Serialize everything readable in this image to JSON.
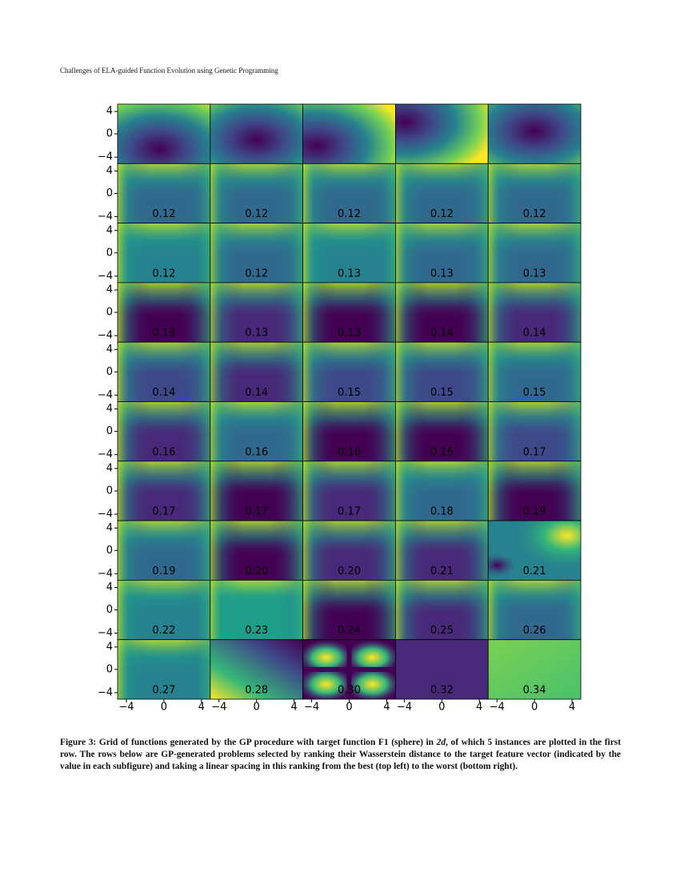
{
  "header": {
    "running_title": "Challenges of ELA-guided Function Evolution using Genetic Programming"
  },
  "figure": {
    "y_ticks": [
      "4",
      "0",
      "−4"
    ],
    "x_ticks": [
      "−4",
      "0",
      "4"
    ],
    "distances": [
      [
        "0.12",
        "0.12",
        "0.12",
        "0.12",
        "0.12"
      ],
      [
        "0.12",
        "0.12",
        "0.13",
        "0.13",
        "0.13"
      ],
      [
        "0.13",
        "0.13",
        "0.13",
        "0.14",
        "0.14"
      ],
      [
        "0.14",
        "0.14",
        "0.15",
        "0.15",
        "0.15"
      ],
      [
        "0.16",
        "0.16",
        "0.16",
        "0.16",
        "0.17"
      ],
      [
        "0.17",
        "0.17",
        "0.17",
        "0.18",
        "0.19"
      ],
      [
        "0.19",
        "0.20",
        "0.20",
        "0.21",
        "0.21"
      ],
      [
        "0.22",
        "0.23",
        "0.24",
        "0.25",
        "0.26"
      ],
      [
        "0.27",
        "0.28",
        "0.30",
        "0.32",
        "0.34"
      ]
    ]
  },
  "caption": {
    "parts": [
      "Figure 3: Grid of functions generated by the GP procedure with target function F1 (sphere) in ",
      "2d",
      ", of which 5 instances are plotted in the first row. The rows below are GP-generated problems selected by ranking their Wasserstein distance to the target feature vector (indicated by the value in each subfigure) and taking a linear spacing in this ranking from the best (top left) to the worst (bottom right)."
    ]
  }
}
